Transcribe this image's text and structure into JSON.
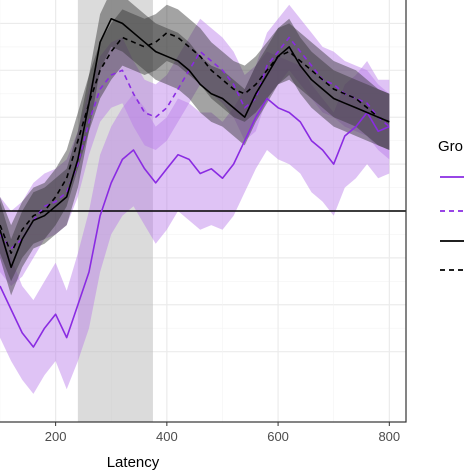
{
  "chart_data": {
    "type": "line",
    "xlabel": "Latency",
    "ylabel": "",
    "xlim": [
      100,
      830
    ],
    "ylim": [
      -4.5,
      4.5
    ],
    "x_ticks": [
      200,
      400,
      600,
      800
    ],
    "y_gridlines": [
      -3,
      -2,
      -1,
      0,
      1,
      2,
      3,
      4
    ],
    "reference_line_y": 0,
    "shaded_window": [
      240,
      375
    ],
    "grid": true,
    "legend_title": "Gro",
    "legend_position": "right",
    "x": [
      100,
      120,
      140,
      160,
      180,
      200,
      220,
      240,
      260,
      280,
      300,
      320,
      340,
      360,
      380,
      400,
      420,
      440,
      460,
      480,
      500,
      520,
      540,
      560,
      580,
      600,
      620,
      640,
      660,
      680,
      700,
      720,
      740,
      760,
      780,
      800
    ],
    "series": [
      {
        "color": "#8a2be2",
        "dash": "solid",
        "values": [
          -1.6,
          -2.1,
          -2.6,
          -2.9,
          -2.5,
          -2.2,
          -2.7,
          -2.0,
          -1.3,
          -0.1,
          0.6,
          1.1,
          1.3,
          0.9,
          0.6,
          0.9,
          1.2,
          1.1,
          0.8,
          0.9,
          0.7,
          1.0,
          1.5,
          2.0,
          2.4,
          2.2,
          2.1,
          1.9,
          1.5,
          1.3,
          1.0,
          1.6,
          1.8,
          2.1,
          1.7,
          1.8
        ],
        "lower": [
          -2.7,
          -3.2,
          -3.6,
          -3.9,
          -3.5,
          -3.2,
          -3.8,
          -3.2,
          -2.5,
          -1.3,
          -0.5,
          -0.1,
          0.1,
          -0.3,
          -0.7,
          -0.4,
          0.0,
          -0.2,
          -0.4,
          -0.3,
          -0.4,
          -0.1,
          0.4,
          0.9,
          1.3,
          1.1,
          1.0,
          0.8,
          0.4,
          0.2,
          -0.1,
          0.5,
          0.7,
          1.0,
          0.7,
          0.8
        ],
        "upper": [
          -0.5,
          -1.0,
          -1.6,
          -1.9,
          -1.5,
          -1.1,
          -1.7,
          -0.9,
          0.0,
          1.2,
          1.8,
          2.2,
          2.5,
          2.2,
          1.8,
          2.0,
          2.4,
          2.3,
          2.1,
          2.1,
          1.9,
          2.2,
          2.6,
          3.1,
          3.4,
          3.3,
          3.2,
          3.1,
          2.7,
          2.4,
          2.1,
          2.7,
          2.9,
          3.2,
          2.8,
          2.8
        ]
      },
      {
        "color": "#8a2be2",
        "dash": "dashed",
        "values": [
          -0.5,
          -0.8,
          -0.6,
          -0.2,
          0.1,
          0.2,
          0.4,
          1.0,
          1.9,
          2.6,
          2.9,
          3.0,
          2.5,
          2.1,
          2.0,
          2.2,
          2.6,
          3.0,
          3.4,
          3.2,
          3.0,
          2.7,
          2.2,
          2.4,
          3.1,
          3.4,
          3.7,
          3.4,
          3.1,
          2.8,
          2.7,
          2.5,
          2.4,
          2.3,
          2.0,
          1.8
        ],
        "lower": [
          -1.3,
          -1.6,
          -1.4,
          -1.0,
          -0.6,
          -0.5,
          -0.3,
          0.3,
          1.2,
          1.9,
          2.2,
          2.3,
          1.8,
          1.4,
          1.3,
          1.5,
          1.9,
          2.3,
          2.7,
          2.5,
          2.3,
          2.0,
          1.5,
          1.7,
          2.4,
          2.7,
          3.0,
          2.7,
          2.4,
          2.1,
          2.0,
          1.8,
          1.7,
          1.6,
          1.3,
          1.1
        ],
        "upper": [
          0.3,
          0.0,
          0.2,
          0.6,
          0.8,
          0.9,
          1.1,
          1.7,
          2.6,
          3.3,
          3.6,
          3.7,
          3.2,
          2.8,
          2.7,
          2.9,
          3.3,
          3.7,
          4.1,
          3.9,
          3.7,
          3.4,
          2.9,
          3.1,
          3.8,
          4.1,
          4.4,
          4.1,
          3.8,
          3.5,
          3.4,
          3.2,
          3.1,
          3.0,
          2.7,
          2.5
        ]
      },
      {
        "color": "#000000",
        "dash": "solid",
        "values": [
          -0.4,
          -1.2,
          -0.6,
          -0.2,
          -0.1,
          0.1,
          0.3,
          1.1,
          2.3,
          3.6,
          4.1,
          4.0,
          3.8,
          3.6,
          3.4,
          3.3,
          3.2,
          3.0,
          2.7,
          2.5,
          2.4,
          2.2,
          2.0,
          2.5,
          2.9,
          3.3,
          3.5,
          3.1,
          2.8,
          2.6,
          2.4,
          2.3,
          2.2,
          2.1,
          2.0,
          1.9
        ],
        "lower": [
          -1.0,
          -1.8,
          -1.2,
          -0.8,
          -0.7,
          -0.5,
          -0.3,
          0.5,
          1.7,
          3.0,
          3.5,
          3.4,
          3.2,
          3.0,
          2.8,
          2.7,
          2.6,
          2.4,
          2.1,
          1.9,
          1.8,
          1.6,
          1.4,
          1.9,
          2.3,
          2.7,
          2.9,
          2.5,
          2.2,
          2.0,
          1.8,
          1.7,
          1.6,
          1.5,
          1.4,
          1.3
        ],
        "upper": [
          0.2,
          -0.6,
          0.0,
          0.4,
          0.5,
          0.7,
          0.9,
          1.7,
          2.9,
          4.2,
          4.7,
          4.6,
          4.4,
          4.2,
          4.0,
          3.9,
          3.8,
          3.6,
          3.3,
          3.1,
          3.0,
          2.8,
          2.6,
          3.1,
          3.5,
          3.9,
          4.1,
          3.7,
          3.4,
          3.2,
          3.0,
          2.9,
          2.8,
          2.7,
          2.6,
          2.5
        ]
      },
      {
        "color": "#000000",
        "dash": "dashed",
        "values": [
          -0.3,
          -0.9,
          -0.4,
          -0.1,
          0.0,
          0.3,
          0.7,
          1.5,
          2.3,
          3.0,
          3.4,
          3.7,
          3.6,
          3.5,
          3.6,
          3.8,
          3.7,
          3.5,
          3.3,
          3.0,
          2.8,
          2.6,
          2.5,
          2.7,
          3.0,
          3.3,
          3.4,
          3.2,
          3.0,
          2.8,
          2.6,
          2.5,
          2.4,
          2.2,
          2.0,
          1.9
        ],
        "lower": [
          -0.9,
          -1.5,
          -1.0,
          -0.7,
          -0.6,
          -0.3,
          0.1,
          0.9,
          1.7,
          2.4,
          2.8,
          3.1,
          3.0,
          2.9,
          3.0,
          3.2,
          3.1,
          2.9,
          2.7,
          2.4,
          2.2,
          2.0,
          1.9,
          2.1,
          2.4,
          2.7,
          2.8,
          2.6,
          2.4,
          2.2,
          2.0,
          1.9,
          1.8,
          1.6,
          1.4,
          1.3
        ],
        "upper": [
          0.3,
          -0.3,
          0.2,
          0.5,
          0.6,
          0.9,
          1.3,
          2.1,
          2.9,
          3.6,
          4.0,
          4.3,
          4.2,
          4.1,
          4.2,
          4.4,
          4.3,
          4.1,
          3.9,
          3.6,
          3.4,
          3.2,
          3.1,
          3.3,
          3.6,
          3.9,
          4.0,
          3.8,
          3.6,
          3.4,
          3.2,
          3.1,
          3.0,
          2.8,
          2.6,
          2.5
        ]
      }
    ]
  }
}
